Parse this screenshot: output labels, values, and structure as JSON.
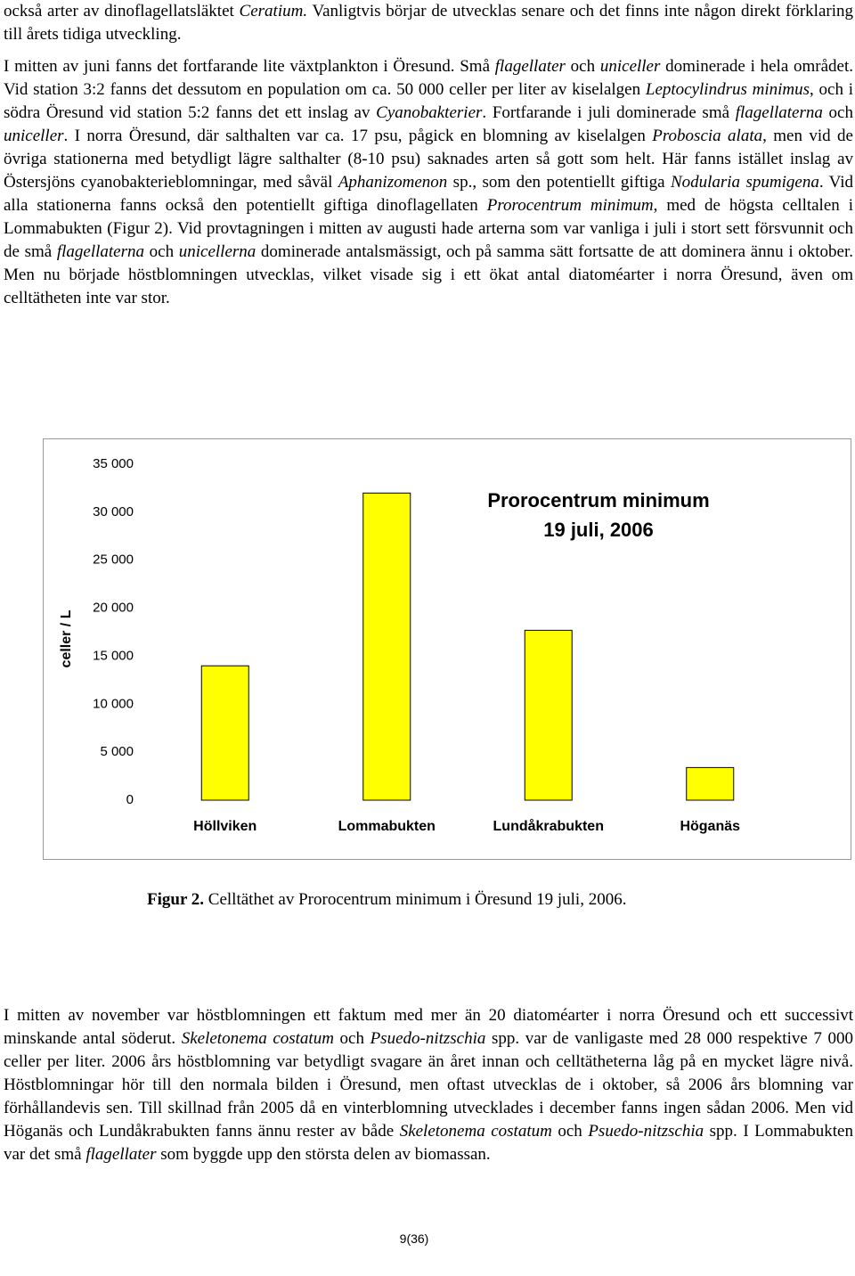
{
  "paragraphs": [
    [
      "också arter av dinoflagellatsläktet ",
      {
        "italic": "Ceratium."
      },
      " Vanligtvis börjar de utvecklas senare och det finns inte någon direkt förklaring till årets tidiga utveckling."
    ],
    [
      "I mitten av juni fanns det fortfarande lite växtplankton i Öresund. Små ",
      {
        "italic": "flagellater"
      },
      " och ",
      {
        "italic": "uniceller"
      },
      " dominerade i hela området. Vid station 3:2 fanns det dessutom en population om ca. 50 000 celler per liter av kiselalgen ",
      {
        "italic": "Leptocylindrus minimus"
      },
      ", och i södra Öresund vid station 5:2 fanns det ett inslag av ",
      {
        "italic": "Cyanobakterier"
      },
      ". Fortfarande i juli dominerade små ",
      {
        "italic": "flagellaterna"
      },
      " och ",
      {
        "italic": "uniceller"
      },
      ". I norra Öresund, där salthalten var ca. 17 psu, pågick en blomning av kiselalgen ",
      {
        "italic": "Proboscia alata"
      },
      ", men vid de övriga stationerna med betydligt lägre salthalter (8-10 psu) saknades arten så gott som helt. Här fanns istället inslag av Östersjöns cyanobakterieblomningar, med såväl ",
      {
        "italic": "Aphanizomenon"
      },
      " sp., som den potentiellt giftiga ",
      {
        "italic": "Nodularia spumigena"
      },
      ". Vid alla stationerna fanns också den potentiellt giftiga dinoflagellaten ",
      {
        "italic": "Prorocentrum minimum"
      },
      ", med de högsta celltalen i Lommabukten (Figur 2). Vid provtagningen i mitten av augusti hade arterna som var vanliga i juli i stort sett försvunnit och de små ",
      {
        "italic": "flagellaterna"
      },
      " och ",
      {
        "italic": "unicellerna"
      },
      " dominerade antalsmässigt, och på samma sätt fortsatte de att dominera ännu i oktober. Men nu började höstblomningen utvecklas, vilket visade sig i ett ökat antal diatoméarter i norra Öresund, även om celltätheten inte var stor."
    ],
    [
      "I mitten av november var höstblomningen ett faktum med mer än 20 diatoméarter i norra Öresund och ett successivt minskande antal söderut. ",
      {
        "italic": "Skeletonema costatum"
      },
      " och ",
      {
        "italic": "Psuedo-nitzschia"
      },
      " spp. var de vanligaste med 28 000 respektive 7 000 celler per liter. 2006 års höstblomning var betydligt svagare än året innan och celltätheterna låg på en mycket lägre nivå. Höstblomningar hör till den normala bilden i Öresund, men oftast utvecklas de i oktober, så 2006 års blomning var förhållandevis sen. Till skillnad från 2005 då en vinterblomning utvecklades i december fanns ingen sådan 2006. Men vid Höganäs och Lundåkrabukten fanns ännu rester av både ",
      {
        "italic": "Skeletonema costatum"
      },
      " och ",
      {
        "italic": "Psuedo-nitzschia"
      },
      " spp. I Lommabukten var det små ",
      {
        "italic": "flagellater"
      },
      " som byggde upp den största delen av biomassan."
    ]
  ],
  "chart_data": {
    "type": "bar",
    "title": "Prorocentrum minimum",
    "subtitle": "19 juli, 2006",
    "y_label": "celler / L",
    "categories": [
      "Höllviken",
      "Lommabukten",
      "Lundåkrabukten",
      "Höganäs"
    ],
    "values": [
      14000,
      32000,
      17700,
      3400
    ],
    "color": "#ffff00",
    "ylim": [
      0,
      35000
    ],
    "yticks": [
      0,
      {
        "value": 5000,
        "label": "5 000"
      },
      {
        "value": 10000,
        "label": "10 000"
      },
      {
        "value": 15000,
        "label": "15 000"
      },
      {
        "value": 20000,
        "label": "20 000"
      },
      {
        "value": 25000,
        "label": "25 000"
      },
      {
        "value": 30000,
        "label": "30 000"
      },
      {
        "value": 35000,
        "label": "35 000"
      }
    ],
    "grid": false
  },
  "caption": [
    {
      "bold": "Figur 2."
    },
    " Celltäthet av Prorocentrum minimum i Öresund 19 juli, 2006."
  ],
  "page_number": "9(36)"
}
